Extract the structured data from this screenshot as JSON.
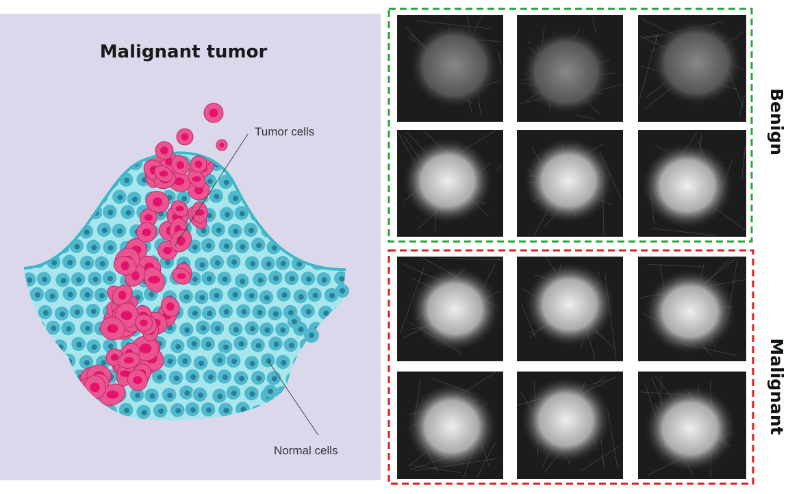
{
  "illustration": {
    "title": "Malignant tumor",
    "labels": [
      "Tumor cells",
      "Normal cells"
    ]
  },
  "groups": [
    {
      "label": "Benign"
    },
    {
      "label": "Malignant"
    }
  ]
}
